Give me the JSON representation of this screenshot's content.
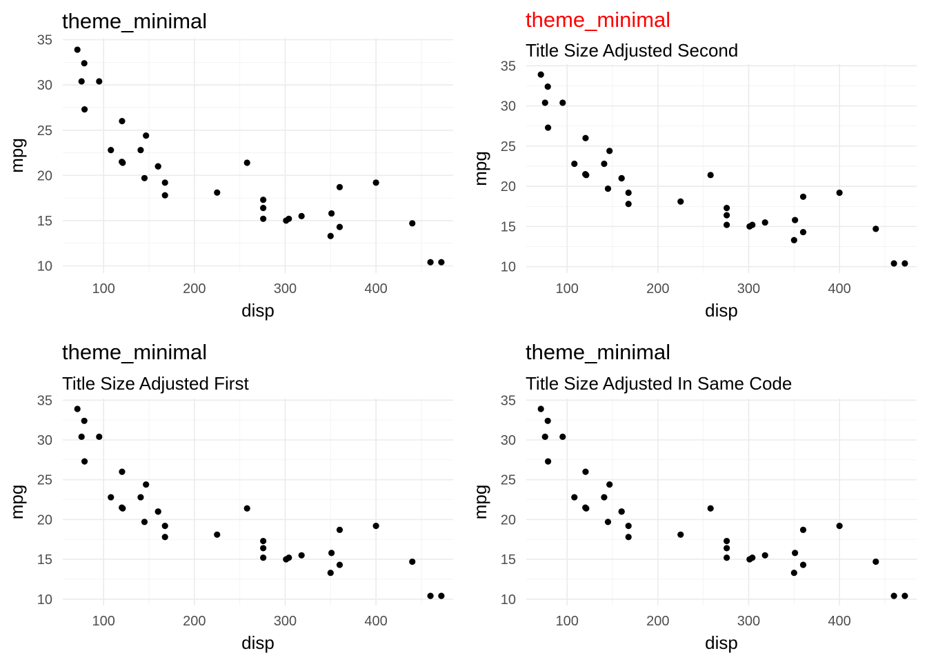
{
  "figure": {
    "panel_count": 4,
    "point_color": "#000000",
    "grid_color": "#ebebeb",
    "title_highlight_color": "#ff0000"
  },
  "chart_data": [
    {
      "type": "scatter",
      "title": "theme_minimal",
      "title_color": "#000000",
      "subtitle": "",
      "xlabel": "disp",
      "ylabel": "mpg",
      "xlim": [
        55,
        485
      ],
      "ylim": [
        9.2,
        35.2
      ],
      "xticks": [
        100,
        200,
        300,
        400
      ],
      "yticks": [
        10,
        15,
        20,
        25,
        30,
        35
      ],
      "grid": true,
      "x": [
        160,
        160,
        108,
        258,
        360,
        225,
        360,
        146.7,
        140.8,
        167.6,
        167.6,
        275.8,
        275.8,
        275.8,
        472,
        460,
        440,
        78.7,
        75.7,
        71.1,
        120.1,
        318,
        304,
        350,
        400,
        79,
        120.3,
        95.1,
        351,
        145,
        301,
        121
      ],
      "y": [
        21,
        21,
        22.8,
        21.4,
        18.7,
        18.1,
        14.3,
        24.4,
        22.8,
        19.2,
        17.8,
        16.4,
        17.3,
        15.2,
        10.4,
        10.4,
        14.7,
        32.4,
        30.4,
        33.9,
        21.5,
        15.5,
        15.2,
        13.3,
        19.2,
        27.3,
        26,
        30.4,
        15.8,
        19.7,
        15,
        21.4
      ]
    },
    {
      "type": "scatter",
      "title": "theme_minimal",
      "title_color": "#ff0000",
      "subtitle": "Title Size Adjusted Second",
      "xlabel": "disp",
      "ylabel": "mpg",
      "xlim": [
        55,
        485
      ],
      "ylim": [
        9.2,
        35.2
      ],
      "xticks": [
        100,
        200,
        300,
        400
      ],
      "yticks": [
        10,
        15,
        20,
        25,
        30,
        35
      ],
      "grid": true,
      "x": [
        160,
        160,
        108,
        258,
        360,
        225,
        360,
        146.7,
        140.8,
        167.6,
        167.6,
        275.8,
        275.8,
        275.8,
        472,
        460,
        440,
        78.7,
        75.7,
        71.1,
        120.1,
        318,
        304,
        350,
        400,
        79,
        120.3,
        95.1,
        351,
        145,
        301,
        121
      ],
      "y": [
        21,
        21,
        22.8,
        21.4,
        18.7,
        18.1,
        14.3,
        24.4,
        22.8,
        19.2,
        17.8,
        16.4,
        17.3,
        15.2,
        10.4,
        10.4,
        14.7,
        32.4,
        30.4,
        33.9,
        21.5,
        15.5,
        15.2,
        13.3,
        19.2,
        27.3,
        26,
        30.4,
        15.8,
        19.7,
        15,
        21.4
      ]
    },
    {
      "type": "scatter",
      "title": "theme_minimal",
      "title_color": "#000000",
      "subtitle": "Title Size Adjusted First",
      "xlabel": "disp",
      "ylabel": "mpg",
      "xlim": [
        55,
        485
      ],
      "ylim": [
        9.2,
        35.2
      ],
      "xticks": [
        100,
        200,
        300,
        400
      ],
      "yticks": [
        10,
        15,
        20,
        25,
        30,
        35
      ],
      "grid": true,
      "x": [
        160,
        160,
        108,
        258,
        360,
        225,
        360,
        146.7,
        140.8,
        167.6,
        167.6,
        275.8,
        275.8,
        275.8,
        472,
        460,
        440,
        78.7,
        75.7,
        71.1,
        120.1,
        318,
        304,
        350,
        400,
        79,
        120.3,
        95.1,
        351,
        145,
        301,
        121
      ],
      "y": [
        21,
        21,
        22.8,
        21.4,
        18.7,
        18.1,
        14.3,
        24.4,
        22.8,
        19.2,
        17.8,
        16.4,
        17.3,
        15.2,
        10.4,
        10.4,
        14.7,
        32.4,
        30.4,
        33.9,
        21.5,
        15.5,
        15.2,
        13.3,
        19.2,
        27.3,
        26,
        30.4,
        15.8,
        19.7,
        15,
        21.4
      ]
    },
    {
      "type": "scatter",
      "title": "theme_minimal",
      "title_color": "#000000",
      "subtitle": "Title Size Adjusted In Same Code",
      "xlabel": "disp",
      "ylabel": "mpg",
      "xlim": [
        55,
        485
      ],
      "ylim": [
        9.2,
        35.2
      ],
      "xticks": [
        100,
        200,
        300,
        400
      ],
      "yticks": [
        10,
        15,
        20,
        25,
        30,
        35
      ],
      "grid": true,
      "x": [
        160,
        160,
        108,
        258,
        360,
        225,
        360,
        146.7,
        140.8,
        167.6,
        167.6,
        275.8,
        275.8,
        275.8,
        472,
        460,
        440,
        78.7,
        75.7,
        71.1,
        120.1,
        318,
        304,
        350,
        400,
        79,
        120.3,
        95.1,
        351,
        145,
        301,
        121
      ],
      "y": [
        21,
        21,
        22.8,
        21.4,
        18.7,
        18.1,
        14.3,
        24.4,
        22.8,
        19.2,
        17.8,
        16.4,
        17.3,
        15.2,
        10.4,
        10.4,
        14.7,
        32.4,
        30.4,
        33.9,
        21.5,
        15.5,
        15.2,
        13.3,
        19.2,
        27.3,
        26,
        30.4,
        15.8,
        19.7,
        15,
        21.4
      ]
    }
  ]
}
